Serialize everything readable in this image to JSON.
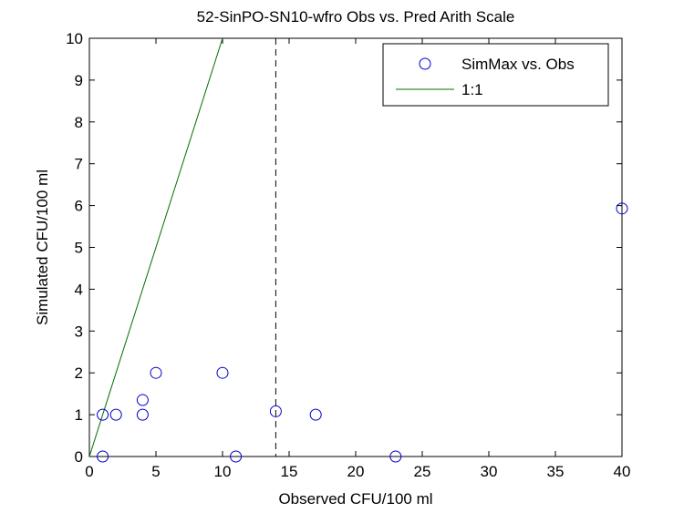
{
  "chart_data": {
    "type": "scatter",
    "title": "52-SinPO-SN10-wfro Obs vs. Pred Arith Scale",
    "xlabel": "Observed CFU/100 ml",
    "ylabel": "Simulated CFU/100 ml",
    "xlim": [
      0,
      40
    ],
    "ylim": [
      0,
      10
    ],
    "xticks": [
      "0",
      "5",
      "10",
      "15",
      "20",
      "25",
      "30",
      "35",
      "40"
    ],
    "yticks": [
      "0",
      "1",
      "2",
      "3",
      "4",
      "5",
      "6",
      "7",
      "8",
      "9",
      "10"
    ],
    "grid": false,
    "legend_position": "top-right",
    "series": [
      {
        "name": "SimMax vs. Obs",
        "marker": "circle",
        "color": "#0000cc",
        "points": [
          {
            "x": 1,
            "y": 0
          },
          {
            "x": 1,
            "y": 1
          },
          {
            "x": 2,
            "y": 1
          },
          {
            "x": 4,
            "y": 1
          },
          {
            "x": 4,
            "y": 1.35
          },
          {
            "x": 5,
            "y": 2
          },
          {
            "x": 10,
            "y": 2
          },
          {
            "x": 11,
            "y": 0
          },
          {
            "x": 14,
            "y": 1.08
          },
          {
            "x": 17,
            "y": 1
          },
          {
            "x": 23,
            "y": 0
          },
          {
            "x": 40,
            "y": 5.93
          }
        ]
      },
      {
        "name": "1:1",
        "line": true,
        "color": "#007000",
        "points": [
          {
            "x": 0,
            "y": 0
          },
          {
            "x": 10,
            "y": 10
          }
        ]
      }
    ],
    "reference_line": {
      "orientation": "vertical",
      "x": 14,
      "style": "dashed",
      "color": "#000000"
    }
  }
}
